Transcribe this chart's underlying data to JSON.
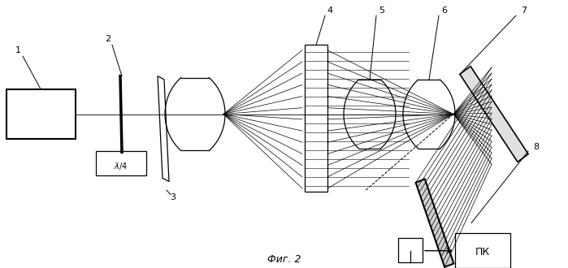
{
  "bg_color": "#ffffff",
  "line_color": "#000000",
  "fig_width": 6.99,
  "fig_height": 3.3,
  "dpi": 100,
  "caption": "Фиг. 2"
}
